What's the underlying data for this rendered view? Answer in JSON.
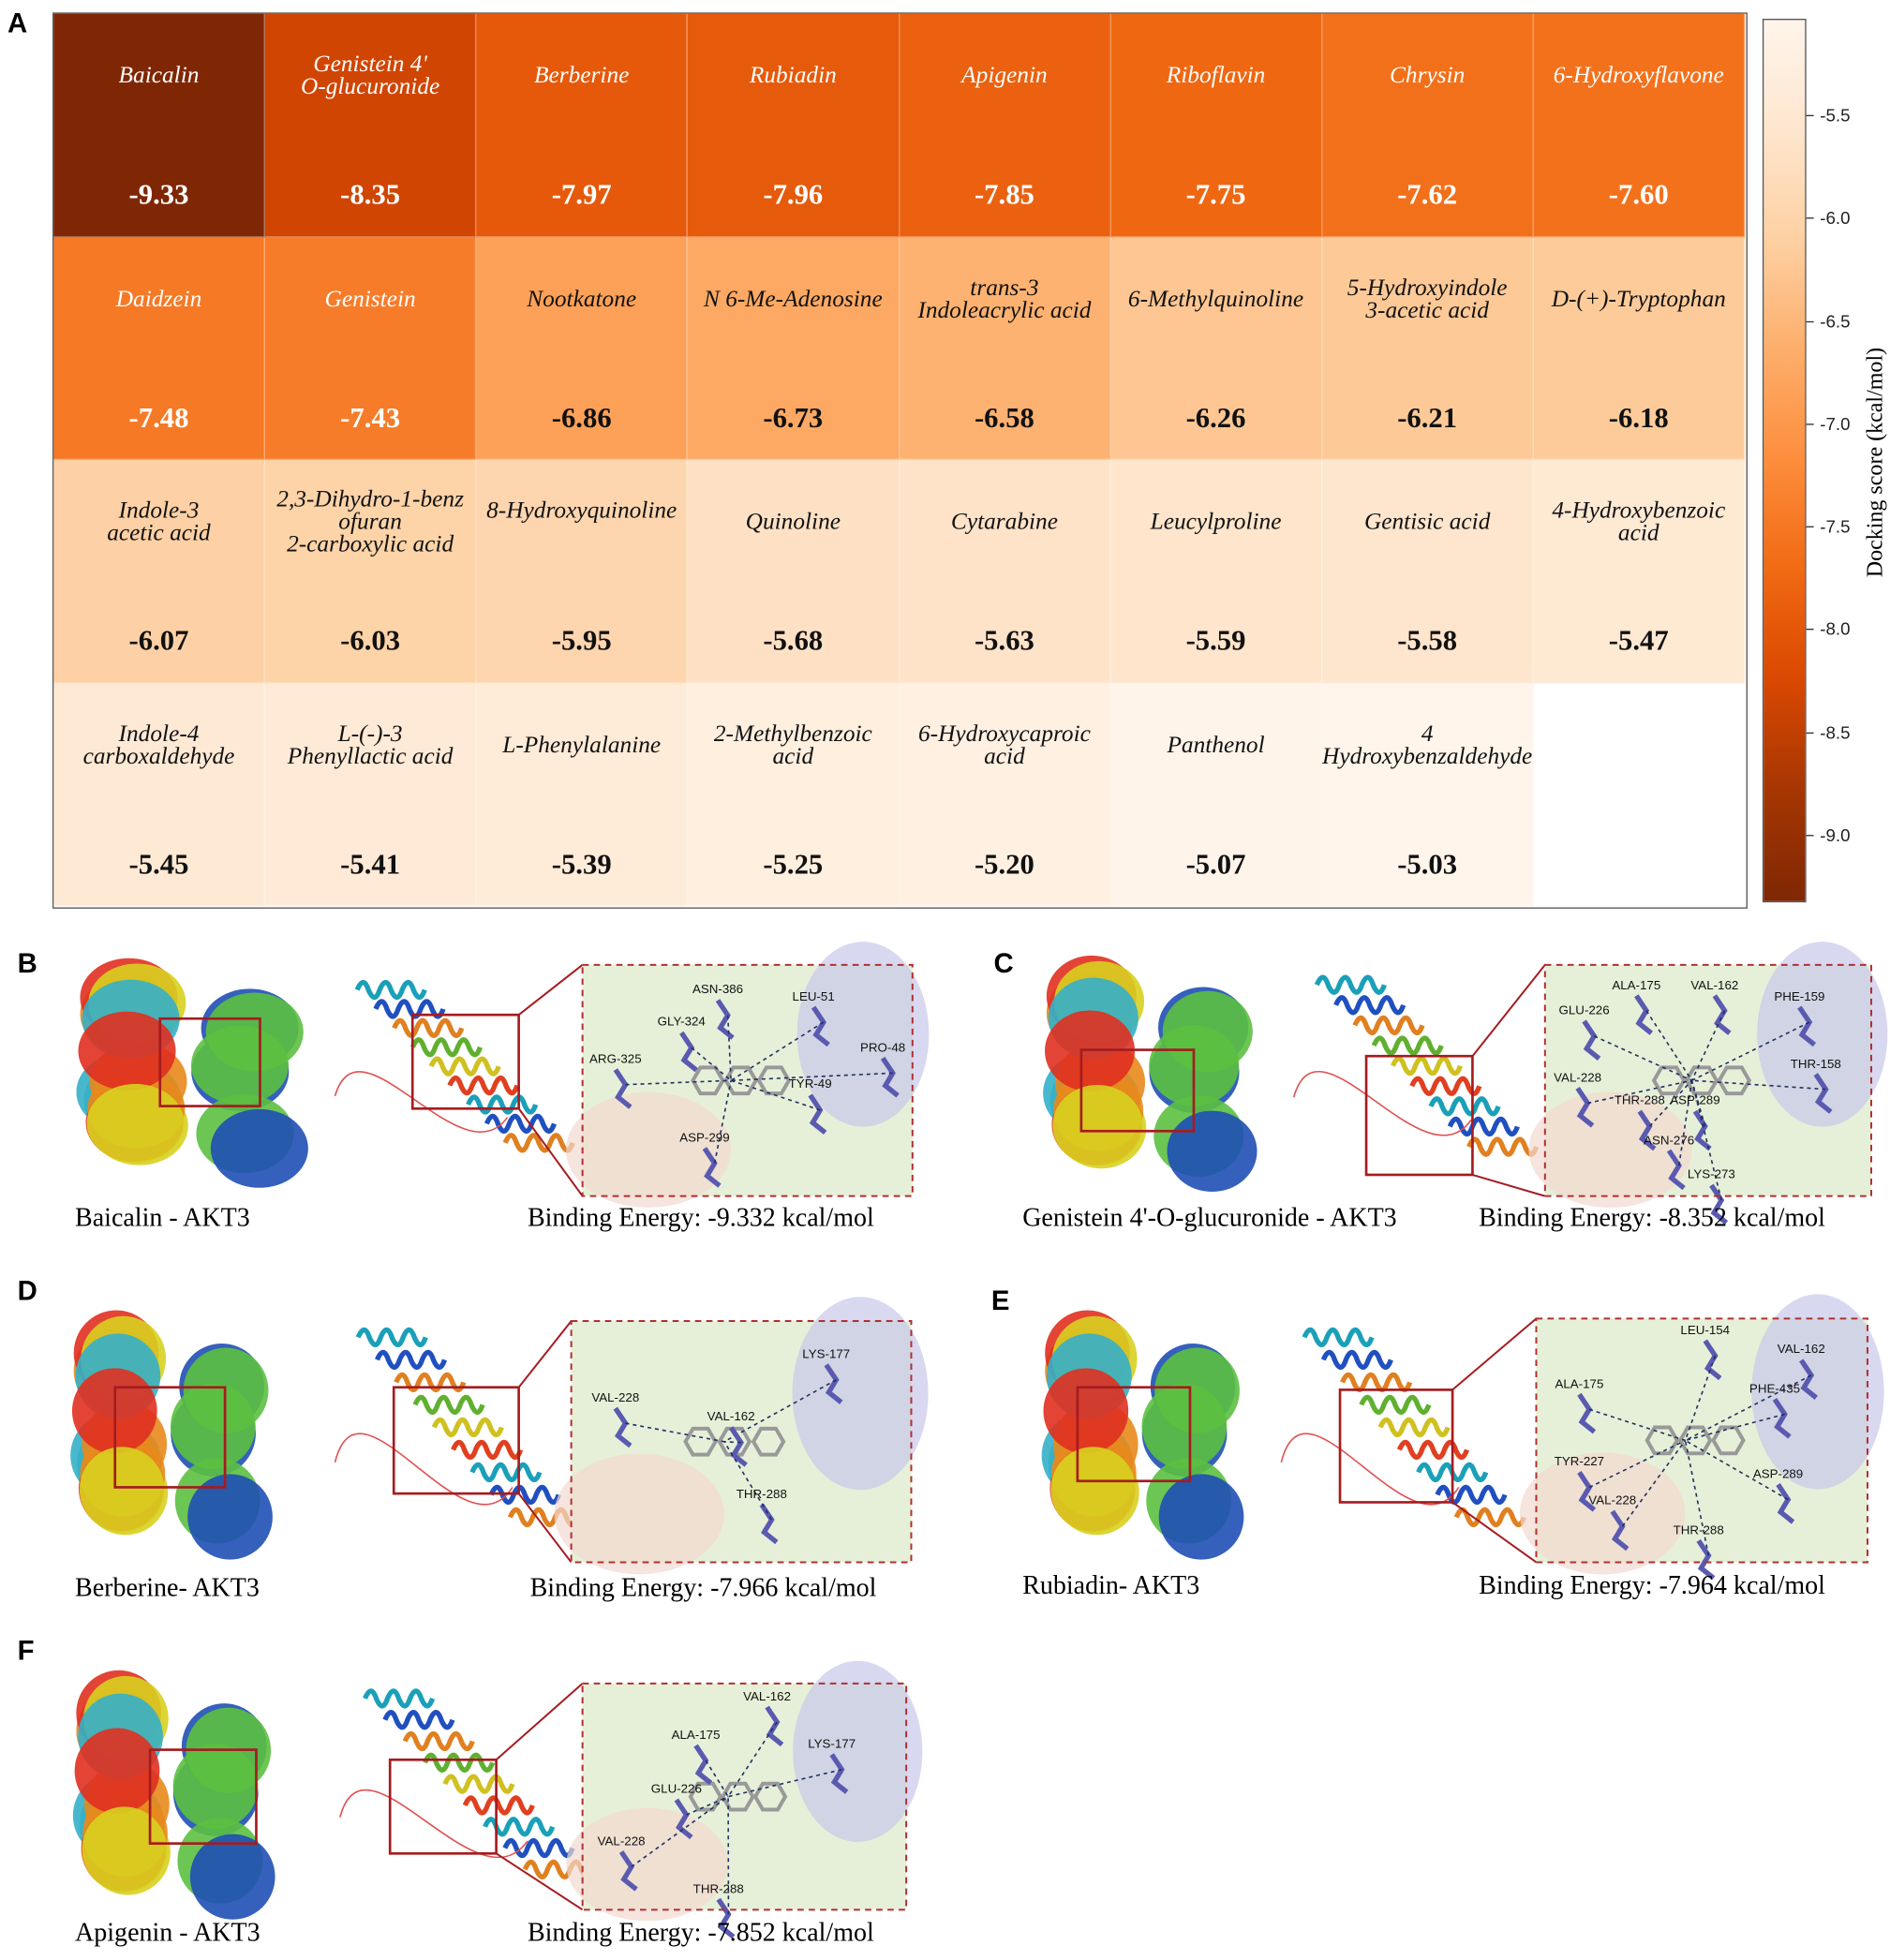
{
  "panel_label": "A",
  "chart_data": {
    "type": "heatmap",
    "categories": [
      "Baicalin",
      "Genistein 4'\nO-glucuronide",
      "Berberine",
      "Rubiadin",
      "Apigenin",
      "Riboflavin",
      "Chrysin",
      "6-Hydroxyflavone",
      "Daidzein",
      "Genistein",
      "Nootkatone",
      "N 6-Me-Adenosine",
      "trans-3\nIndoleacrylic acid",
      "6-Methylquinoline",
      "5-Hydroxyindole\n3-acetic acid",
      "D-(+)-Tryptophan",
      "Indole-3\nacetic acid",
      "2,3-Dihydro-1-benz\nofuran\n2-carboxylic acid",
      "8-Hydroxyquinoline\n\n",
      "Quinoline",
      "Cytarabine",
      "Leucylproline",
      "Gentisic acid",
      "4-Hydroxybenzoic\nacid",
      "Indole-4\ncarboxaldehyde",
      "L-(-)-3\nPhenyllactic acid",
      "L-Phenylalanine",
      "2-Methylbenzoic\nacid",
      "6-Hydroxycaproic\nacid",
      "Panthenol",
      "4\nHydroxybenzaldehyde"
    ],
    "values": [
      -9.33,
      -8.35,
      -7.97,
      -7.96,
      -7.85,
      -7.75,
      -7.62,
      -7.6,
      -7.48,
      -7.43,
      -6.86,
      -6.73,
      -6.58,
      -6.26,
      -6.21,
      -6.18,
      -6.07,
      -6.03,
      -5.95,
      -5.68,
      -5.63,
      -5.59,
      -5.58,
      -5.47,
      -5.45,
      -5.41,
      -5.39,
      -5.25,
      -5.2,
      -5.07,
      -5.03
    ],
    "value_labels": [
      "-9.33",
      "-8.35",
      "-7.97",
      "-7.96",
      "-7.85",
      "-7.75",
      "-7.62",
      "-7.60",
      "-7.48",
      "-7.43",
      "-6.86",
      "-6.73",
      "-6.58",
      "-6.26",
      "-6.21",
      "-6.18",
      "-6.07",
      "-6.03",
      "-5.95",
      "-5.68",
      "-5.63",
      "-5.59",
      "-5.58",
      "-5.47",
      "-5.45",
      "-5.41",
      "-5.39",
      "-5.25",
      "-5.20",
      "-5.07",
      "-5.03"
    ],
    "colorbar_label": "Docking score (kcal/mol)",
    "clim": [
      -5.03,
      -9.33
    ],
    "cticks": [
      -5.5,
      {
        "value": -6,
        "label": "-6.0"
      },
      -6.5,
      {
        "value": -7,
        "label": "-7.0"
      },
      -7.5,
      {
        "value": -8,
        "label": "-8.0"
      },
      -8.5,
      {
        "value": -9,
        "label": "-9.0"
      }
    ],
    "colors": [
      "#fff5eb",
      "#fee6ce",
      "#fdd0a2",
      "#fdae6b",
      "#fd8d3c",
      "#f16913",
      "#d94801",
      "#a63603",
      "#7f2704"
    ]
  },
  "panels": [
    {
      "label": "B",
      "caption_left": "Baicalin - AKT3",
      "caption_right": "Binding Energy: -9.332 kcal/mol",
      "residues": [
        "ASN-386",
        "LEU-51",
        "GLY-324",
        "PRO-48",
        "ARG-325",
        "TYR-49",
        "ASP-299"
      ]
    },
    {
      "label": "C",
      "caption_left": "Genistein 4'-O-glucuronide - AKT3",
      "caption_right": "Binding Energy: -8.352 kcal/mol",
      "residues": [
        "ALA-175",
        "VAL-162",
        "PHE-159",
        "GLU-226",
        "THR-158",
        "VAL-228",
        "THR-288",
        "ASP-289",
        "ASN-276",
        "LYS-273"
      ]
    },
    {
      "label": "D",
      "caption_left": "Berberine- AKT3",
      "caption_right": "Binding Energy: -7.966 kcal/mol",
      "residues": [
        "LYS-177",
        "VAL-162",
        "VAL-228",
        "THR-288"
      ]
    },
    {
      "label": "E",
      "caption_left": "Rubiadin- AKT3",
      "caption_right": "Binding Energy: -7.964 kcal/mol",
      "residues": [
        "LEU-154",
        "VAL-162",
        "ALA-175",
        "PHE-435",
        "TYR-227",
        "ASP-289",
        "VAL-228",
        "THR-288"
      ]
    },
    {
      "label": "F",
      "caption_left": "Apigenin - AKT3",
      "caption_right": "Binding Energy: -7.852 kcal/mol",
      "residues": [
        "VAL-162",
        "ALA-175",
        "LYS-177",
        "GLU-226",
        "VAL-228",
        "THR-288"
      ]
    }
  ]
}
